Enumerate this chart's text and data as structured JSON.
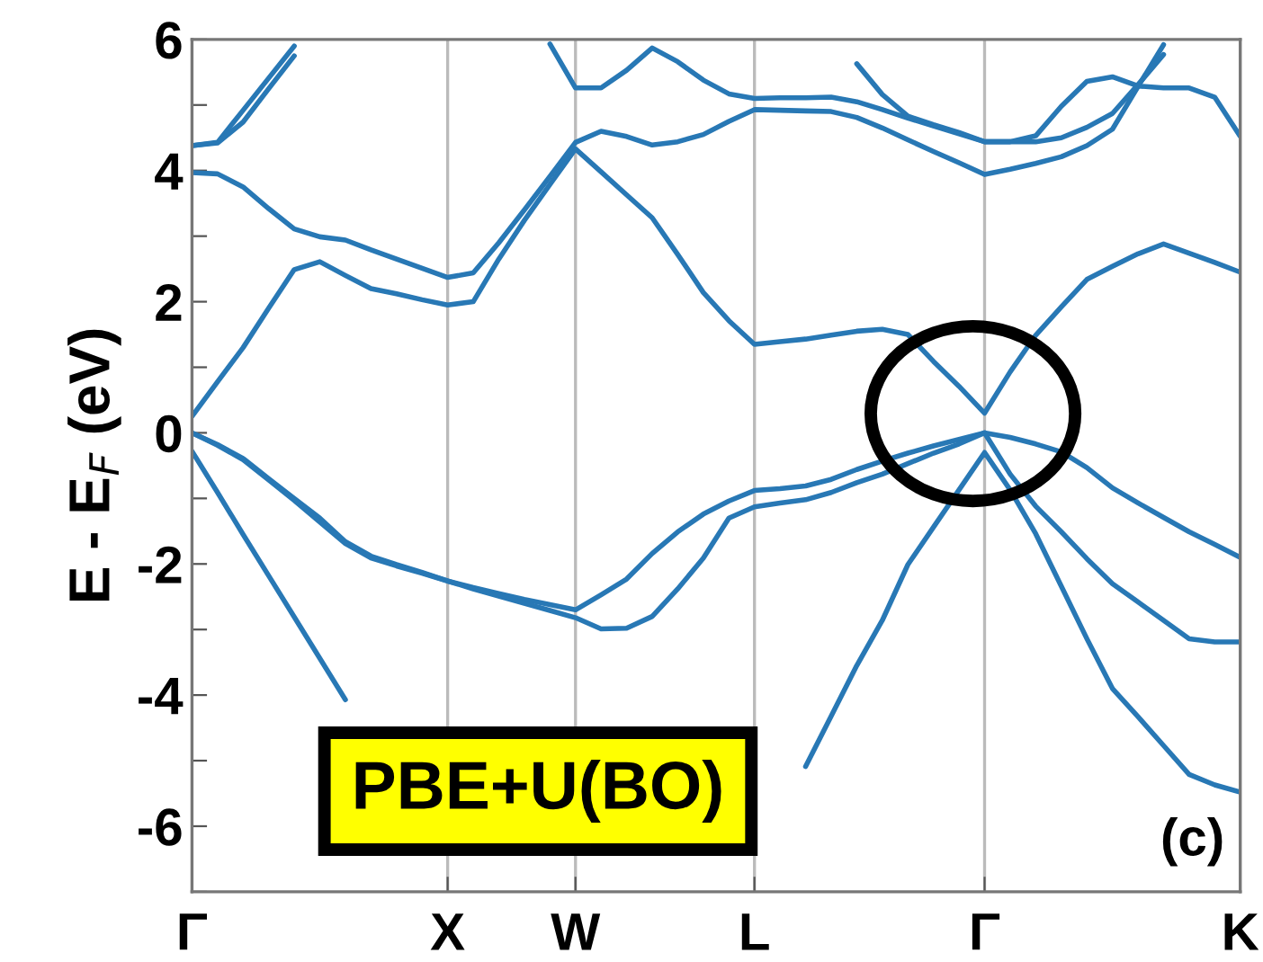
{
  "chart_data": {
    "type": "line",
    "ylabel": "E - E$_{F}$ (eV)",
    "annotations": [
      "PBE+U(BO)",
      "(c)"
    ],
    "categories": [
      "Γ",
      null,
      null,
      null,
      null,
      null,
      null,
      null,
      null,
      null,
      "X",
      null,
      null,
      null,
      null,
      "W",
      null,
      null,
      null,
      null,
      null,
      null,
      "L",
      null,
      null,
      null,
      null,
      null,
      null,
      null,
      null,
      "Γ",
      null,
      null,
      null,
      null,
      null,
      null,
      null,
      null,
      null,
      "K"
    ],
    "ylim": [
      -7,
      6
    ],
    "yticks": [
      {
        "value": -7,
        "label": null
      },
      -6,
      {
        "value": -5,
        "label": null
      },
      -4,
      {
        "value": -3,
        "label": null
      },
      -2,
      {
        "value": -1,
        "label": null
      },
      0,
      {
        "value": 1,
        "label": null
      },
      2,
      {
        "value": 3,
        "label": null
      },
      4,
      {
        "value": 5,
        "label": null
      },
      6
    ],
    "grid": "x",
    "marker": "none",
    "line_style": "solid",
    "series": [
      {
        "color": "#2878b5",
        "values": [
          0,
          -0.18,
          -0.39,
          -0.7,
          -1.0,
          -1.3,
          -1.66,
          -1.88,
          -2.01,
          -2.13,
          -2.26,
          -2.36,
          -2.45,
          -2.54,
          -2.62,
          -2.7,
          -2.47,
          -2.23,
          -1.84,
          -1.51,
          -1.24,
          -1.04,
          -0.88,
          -0.85,
          -0.81,
          -0.71,
          -0.56,
          -0.43,
          -0.31,
          -0.2,
          -0.1,
          0,
          -0.07,
          -0.17,
          -0.29,
          -0.53,
          -0.84,
          -1.07,
          -1.29,
          -1.51,
          -1.7,
          -1.9
        ]
      },
      {
        "color": "#2878b5",
        "values": [
          0,
          -0.19,
          -0.41,
          -0.72,
          -1.03,
          -1.36,
          -1.69,
          -1.91,
          -2.03,
          -2.14,
          -2.26,
          -2.38,
          -2.49,
          -2.6,
          -2.71,
          -2.82,
          -2.99,
          -2.98,
          -2.8,
          -2.38,
          -1.91,
          -1.3,
          -1.13,
          -1.07,
          -1.02,
          -0.91,
          -0.76,
          -0.63,
          -0.47,
          -0.31,
          -0.17,
          0,
          -0.63,
          -1.12,
          -1.51,
          -1.92,
          -2.3,
          -2.58,
          -2.86,
          -3.14,
          -3.19,
          -3.19
        ]
      },
      {
        "color": "#2878b5",
        "values": [
          -0.28,
          -0.91,
          -1.55,
          -2.18,
          -2.81,
          -3.44,
          -4.07,
          null,
          null,
          null,
          null,
          null,
          null,
          null,
          null,
          null,
          null,
          null,
          null,
          null,
          null,
          null,
          null,
          null,
          -5.09,
          -4.32,
          -3.55,
          -2.86,
          -2.01,
          -1.44,
          -0.87,
          -0.3,
          -0.87,
          -1.54,
          -2.34,
          -3.14,
          -3.9,
          -4.33,
          -4.77,
          -5.21,
          -5.37,
          -5.48
        ]
      },
      {
        "color": "#2878b5",
        "values": [
          0.25,
          0.78,
          1.3,
          1.9,
          2.49,
          2.61,
          2.4,
          2.2,
          2.12,
          2.03,
          1.95,
          2.0,
          2.65,
          3.24,
          3.79,
          4.33,
          3.98,
          3.63,
          3.28,
          2.72,
          2.14,
          1.71,
          1.35,
          1.39,
          1.43,
          1.49,
          1.55,
          1.58,
          1.5,
          1.09,
          0.71,
          0.3,
          0.93,
          1.49,
          1.92,
          2.34,
          2.54,
          2.73,
          2.88,
          2.74,
          2.6,
          2.45
        ]
      },
      {
        "color": "#2878b5",
        "values": [
          3.97,
          3.95,
          3.75,
          3.42,
          3.11,
          2.99,
          2.94,
          2.79,
          2.65,
          2.51,
          2.37,
          2.44,
          2.9,
          3.4,
          3.91,
          4.43,
          4.6,
          4.52,
          4.39,
          4.44,
          4.55,
          4.75,
          4.93,
          4.92,
          4.91,
          4.9,
          4.81,
          4.65,
          4.47,
          4.29,
          4.12,
          3.94,
          4.02,
          4.11,
          4.21,
          4.38,
          4.63,
          5.28,
          5.92,
          null,
          null,
          null
        ]
      },
      {
        "color": "#2878b5",
        "values": [
          4.38,
          4.43,
          4.92,
          5.41,
          5.9,
          null,
          null,
          null,
          null,
          null,
          null,
          null,
          null,
          null,
          null,
          null,
          null,
          null,
          null,
          null,
          null,
          null,
          null,
          null,
          null,
          null,
          null,
          null,
          null,
          null,
          null,
          null,
          null,
          null,
          null,
          null,
          null,
          null,
          null,
          null,
          null,
          null
        ]
      },
      {
        "color": "#2878b5",
        "values": [
          4.38,
          4.42,
          4.74,
          5.25,
          5.75,
          null,
          null,
          null,
          null,
          null,
          null,
          null,
          null,
          null,
          null,
          null,
          null,
          null,
          null,
          null,
          null,
          null,
          null,
          null,
          null,
          null,
          null,
          null,
          null,
          null,
          null,
          null,
          null,
          null,
          null,
          null,
          null,
          null,
          null,
          null,
          null,
          null
        ]
      },
      {
        "color": "#2878b5",
        "values": [
          null,
          null,
          null,
          null,
          null,
          null,
          null,
          null,
          null,
          null,
          null,
          null,
          null,
          null,
          5.93,
          5.26,
          5.26,
          5.53,
          5.87,
          5.66,
          5.38,
          5.17,
          5.1,
          5.11,
          5.11,
          5.12,
          5.05,
          4.93,
          4.8,
          4.68,
          4.56,
          4.44,
          4.44,
          4.53,
          4.98,
          5.36,
          5.43,
          5.29,
          5.26,
          5.26,
          5.12,
          4.52
        ]
      },
      {
        "color": "#2878b5",
        "values": [
          null,
          null,
          null,
          null,
          null,
          null,
          null,
          null,
          null,
          null,
          null,
          null,
          null,
          null,
          null,
          null,
          null,
          null,
          null,
          null,
          null,
          null,
          null,
          null,
          null,
          null,
          5.63,
          5.16,
          4.83,
          4.7,
          4.58,
          4.44,
          4.44,
          4.44,
          4.5,
          4.66,
          4.87,
          5.31,
          5.77,
          null,
          null,
          null
        ]
      }
    ]
  }
}
